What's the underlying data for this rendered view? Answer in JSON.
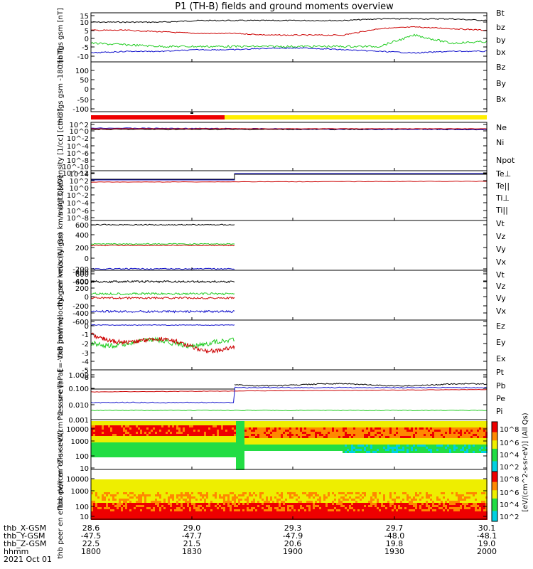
{
  "title": "P1 (TH-B) fields and ground moments overview",
  "date": "2021 Oct 01",
  "colors": {
    "black": "#000000",
    "red": "#cc0000",
    "green": "#22cc22",
    "blue": "#1010cc",
    "yellow": "#ffee00",
    "bar_red": "#ee0000"
  },
  "x_axis": {
    "rows": [
      {
        "label": "thb_X-GSM",
        "values": [
          "28.6",
          "29.0",
          "29.3",
          "29.7",
          "30.1"
        ]
      },
      {
        "label": "thb_Y-GSM",
        "values": [
          "-47.5",
          "-47.7",
          "-47.9",
          "-48.0",
          "-48.1"
        ]
      },
      {
        "label": "thb_Z-GSM",
        "values": [
          "22.5",
          "21.5",
          "20.6",
          "19.8",
          "19.0"
        ]
      },
      {
        "label": "hhmm",
        "values": [
          "1800",
          "1830",
          "1900",
          "1930",
          "2000"
        ]
      }
    ]
  },
  "chart_data": [
    {
      "type": "line",
      "ylabel": "thb fgs gsm [nT]",
      "ylim": [
        -10,
        15
      ],
      "ticks": [
        "15",
        "10",
        "5",
        "0",
        "-5",
        "-10"
      ],
      "series": [
        {
          "name": "Bt",
          "values": [
            11,
            11,
            11,
            12,
            12,
            12,
            12,
            12,
            13,
            13,
            13,
            12
          ]
        },
        {
          "name": "bz",
          "values": [
            6,
            6,
            5,
            4,
            4,
            3,
            3,
            3,
            7,
            8,
            7,
            6
          ]
        },
        {
          "name": "by",
          "values": [
            -2,
            -3,
            -4,
            -4,
            -4,
            -4,
            -4,
            -4,
            -4,
            3,
            -2,
            -1
          ]
        },
        {
          "name": "bx",
          "values": [
            -8,
            -7,
            -7,
            -6,
            -6,
            -5,
            -5,
            -6,
            -7,
            -8,
            -7,
            -7
          ]
        }
      ]
    },
    {
      "type": "line",
      "ylabel": "thb fgs gsm -180 [nT]",
      "ylim": [
        -120,
        100
      ],
      "ticks": [
        "100",
        "50",
        "0",
        "-50",
        "-100"
      ],
      "series": [
        {
          "name": "Bz",
          "values": []
        },
        {
          "name": "By",
          "values": []
        },
        {
          "name": "Bx",
          "values": []
        }
      ]
    },
    {
      "type": "line",
      "ylabel": "Density [1/cc] [cm-3]",
      "ticks": [
        "10^2",
        "10^0",
        "10^-2",
        "10^-4",
        "10^-6",
        "10^-8",
        "10^-10",
        "10^-12"
      ],
      "series": [
        {
          "name": "Ne",
          "values": []
        },
        {
          "name": "Ni",
          "values": []
        },
        {
          "name": "Npot",
          "values": []
        }
      ]
    },
    {
      "type": "line",
      "ylabel": "magt3 [eV]",
      "ticks": [
        "10^4",
        "10^2",
        "10^0",
        "10^-2",
        "10^-4",
        "10^-6",
        "10^-8"
      ],
      "series": [
        {
          "name": "Te⊥",
          "values": []
        },
        {
          "name": "Te||",
          "values": []
        },
        {
          "name": "Ti⊥",
          "values": []
        },
        {
          "name": "Ti||",
          "values": []
        }
      ]
    },
    {
      "type": "line",
      "ylabel": "thb peir velocity gsm km/s (All Qs)",
      "ticks": [
        "600",
        "400",
        "200",
        "0",
        "-200",
        "-400",
        "-600"
      ],
      "series": [
        {
          "name": "Vt",
          "values": []
        },
        {
          "name": "Vz",
          "values": []
        },
        {
          "name": "Vy",
          "values": []
        },
        {
          "name": "Vx",
          "values": []
        }
      ]
    },
    {
      "type": "line",
      "ylabel": "thb peer velocity gsm km/s (All Qs)",
      "ticks": [
        "600",
        "400",
        "200",
        "0",
        "-200",
        "-400",
        "-600"
      ],
      "series": [
        {
          "name": "Vt",
          "values": []
        },
        {
          "name": "Vz",
          "values": []
        },
        {
          "name": "Vy",
          "values": []
        },
        {
          "name": "Vx",
          "values": []
        }
      ]
    },
    {
      "type": "line",
      "ylabel": "E=-VxB [mV/m]",
      "ticks": [
        "0",
        "-1",
        "-2",
        "-3",
        "-4",
        "-5",
        "-6"
      ],
      "series": [
        {
          "name": "Ez",
          "values": []
        },
        {
          "name": "Ey",
          "values": []
        },
        {
          "name": "Ex",
          "values": []
        }
      ]
    },
    {
      "type": "line",
      "ylabel": "Pressure [nPa]",
      "ticks": [
        "1.000",
        "0.100",
        "0.010",
        "0.001"
      ],
      "series": [
        {
          "name": "Pt",
          "values": []
        },
        {
          "name": "Pb",
          "values": []
        },
        {
          "name": "Pe",
          "values": []
        },
        {
          "name": "Pi",
          "values": []
        }
      ]
    },
    {
      "type": "heatmap",
      "ylabel": "thb peir en eflux eV/(cm^2-s-sr-eV)",
      "ticks": [
        "10000",
        "1000",
        "100",
        "10"
      ],
      "colorbar": [
        "10^8",
        "10^6",
        "10^4",
        "10^2"
      ]
    },
    {
      "type": "heatmap",
      "ylabel": "thb peer en eflux eV/(cm^2-s-sr-eV)",
      "ticks": [
        "10000",
        "1000",
        "100",
        "10"
      ],
      "colorbar": [
        "10^8",
        "10^6",
        "10^4",
        "10^2"
      ]
    }
  ],
  "colorbar_label": "[eV/(cm^2-s-sr-eV)]  (All Qs)"
}
